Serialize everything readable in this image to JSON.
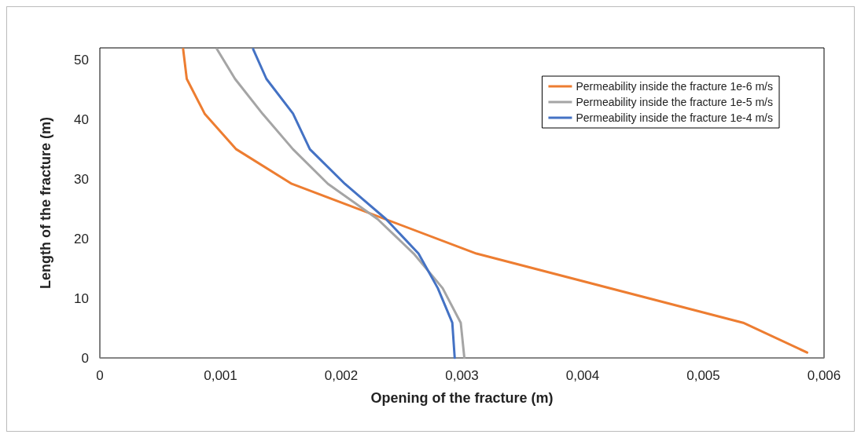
{
  "chart_data": {
    "type": "line",
    "xlabel": "Opening of the fracture (m)",
    "ylabel": "Length of the fracture (m)",
    "xlim": [
      0,
      0.006
    ],
    "ylim": [
      0,
      52
    ],
    "xticks": [
      0,
      {
        "value": 0.001,
        "label": "0,001"
      },
      {
        "value": 0.002,
        "label": "0,002"
      },
      {
        "value": 0.003,
        "label": "0,003"
      },
      {
        "value": 0.004,
        "label": "0,004"
      },
      {
        "value": 0.005,
        "label": "0,005"
      },
      {
        "value": 0.006,
        "label": "0,006"
      }
    ],
    "yticks": [
      0,
      10,
      20,
      30,
      40,
      50
    ],
    "grid": false,
    "legend": "top right",
    "marker": "none",
    "line_style": "solid",
    "series": [
      {
        "name": "Permeability inside the fracture 1e-6 m/s",
        "color": "#ed7d31",
        "x": [
          0.00586,
          0.00533,
          0.00312,
          0.00159,
          0.00113,
          0.00087,
          0.00072,
          0.00069
        ],
        "values": [
          0.9,
          5.9,
          17.5,
          29.2,
          35,
          40.9,
          46.8,
          51.8
        ]
      },
      {
        "name": "Permeability inside the fracture 1e-5 m/s",
        "color": "#a5a5a5",
        "x": [
          0.00302,
          0.00299,
          0.00284,
          0.0026,
          0.0023,
          0.00189,
          0.0016,
          0.00135,
          0.00112,
          0.00097
        ],
        "values": [
          0,
          5.9,
          11.7,
          17.5,
          23.3,
          29.2,
          35,
          40.9,
          46.8,
          51.8
        ]
      },
      {
        "name": "Permeability inside the fracture 1e-4 m/s",
        "color": "#4472c4",
        "x": [
          0.00294,
          0.00292,
          0.0028,
          0.00264,
          0.00237,
          0.00203,
          0.00174,
          0.0016,
          0.00138,
          0.00127
        ],
        "values": [
          0,
          5.9,
          11.7,
          17.5,
          23.3,
          29.2,
          35,
          41,
          46.8,
          51.8
        ]
      }
    ]
  }
}
